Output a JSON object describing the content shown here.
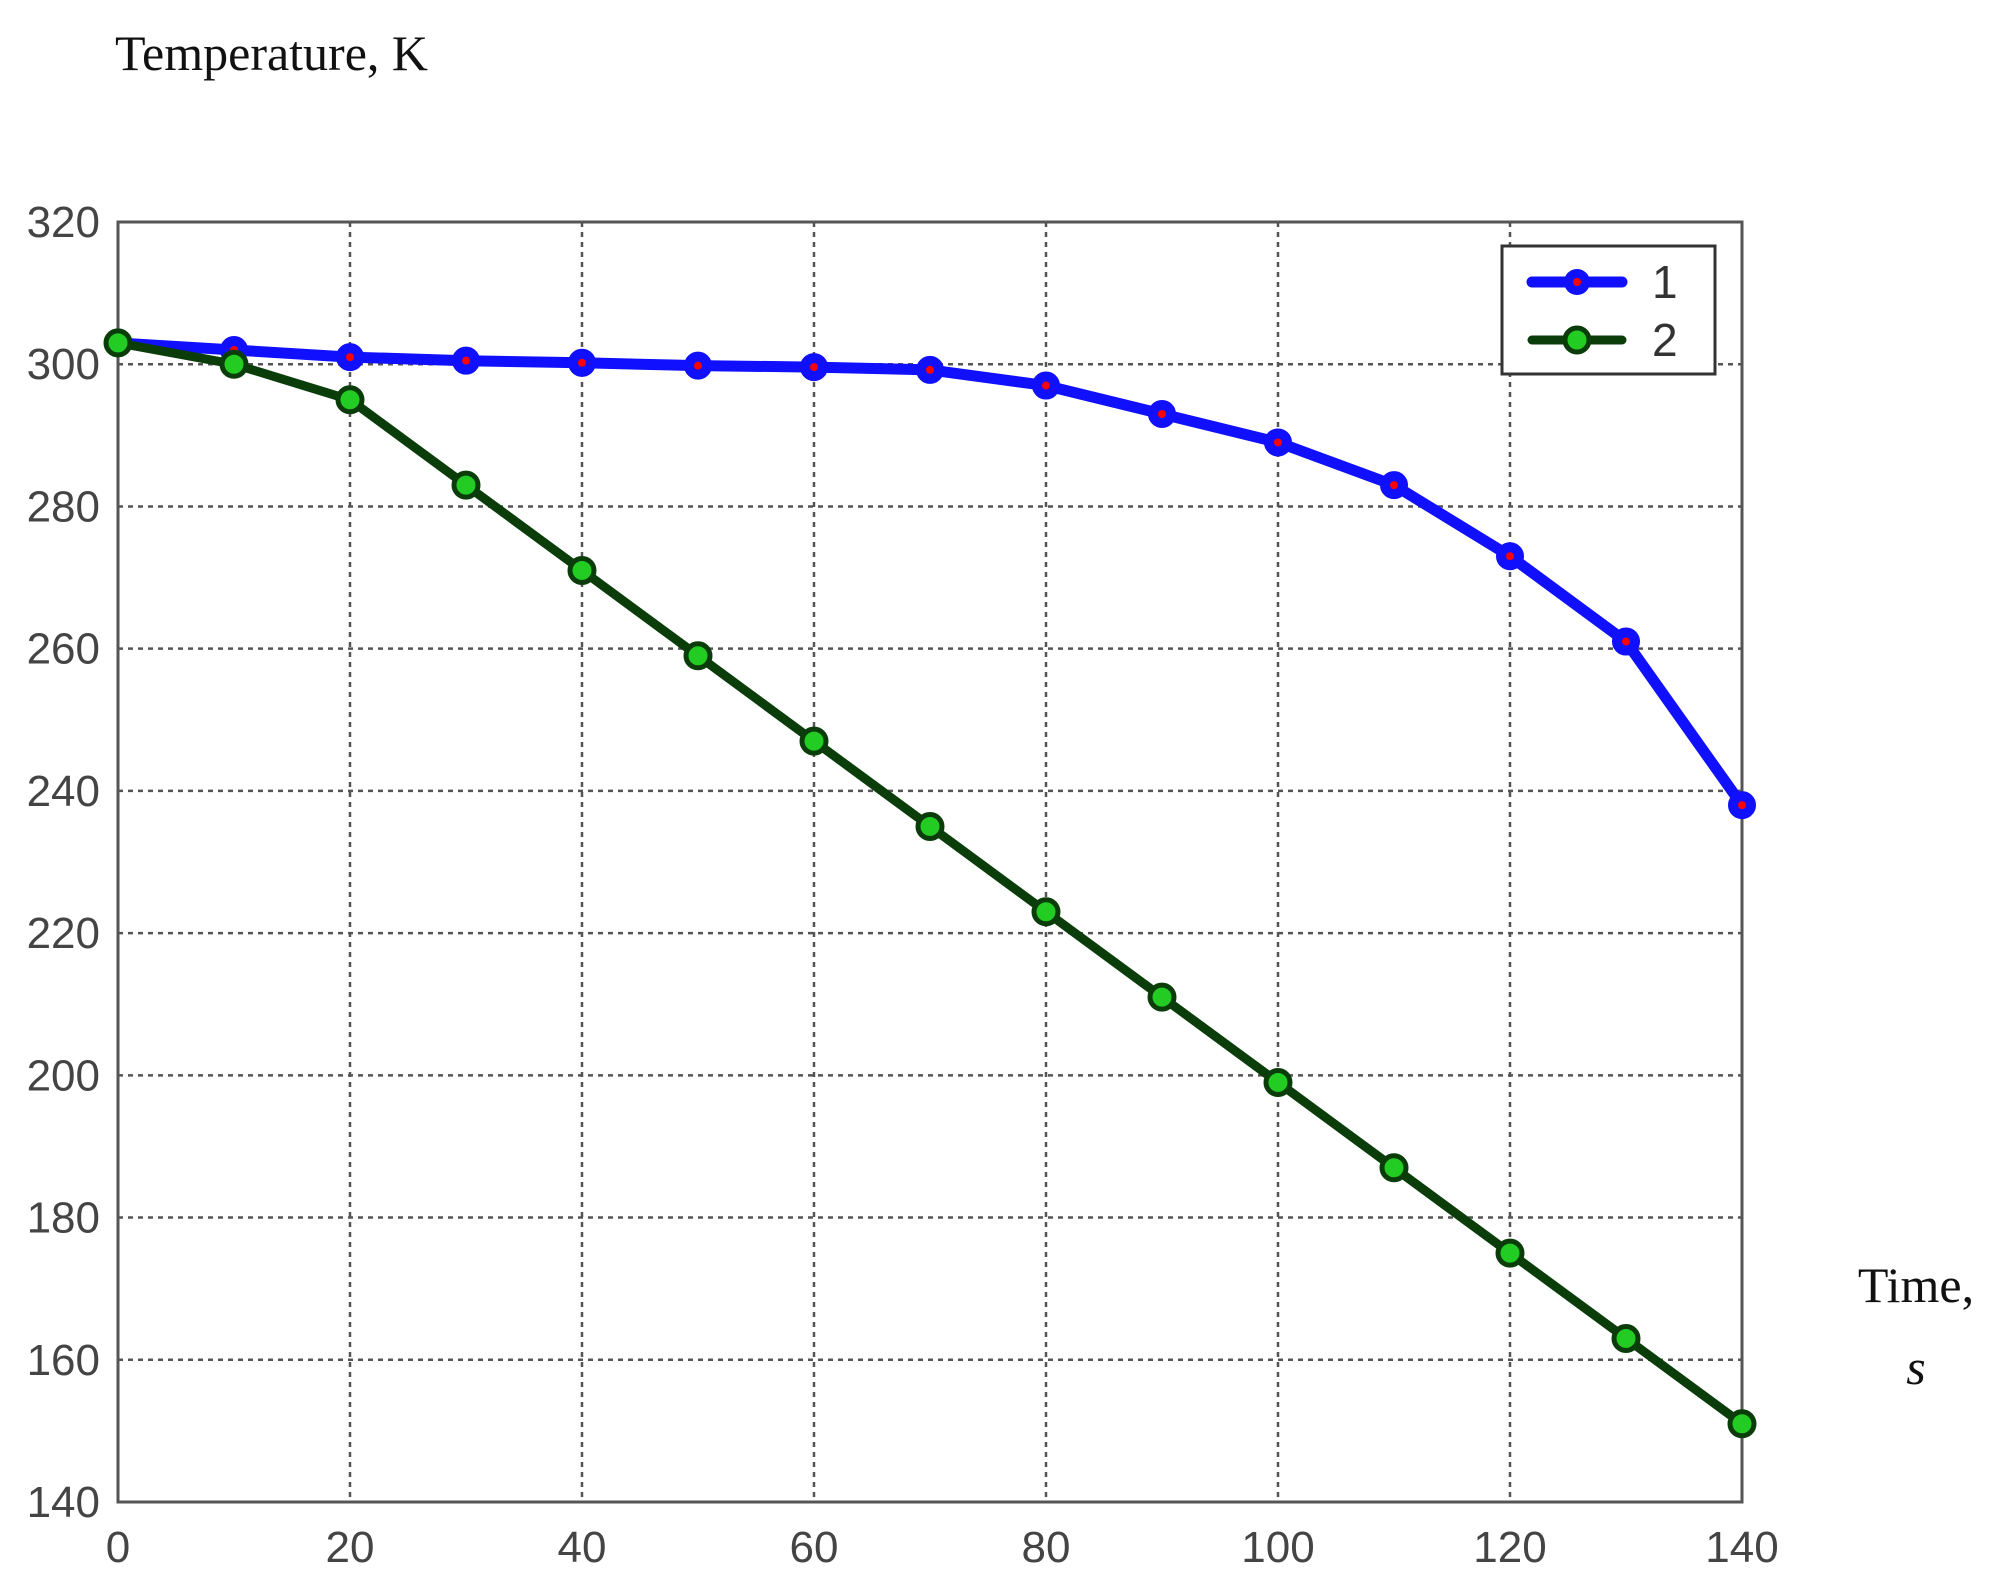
{
  "chart_data": {
    "type": "line",
    "title": "",
    "ylabel": "Temperature, K",
    "xlabel_line1": "Time,",
    "xlabel_line2": "s",
    "xlim": [
      0,
      140
    ],
    "ylim": [
      140,
      320
    ],
    "x_ticks": [
      0,
      20,
      40,
      60,
      80,
      100,
      120,
      140
    ],
    "y_ticks": [
      140,
      160,
      180,
      200,
      220,
      240,
      260,
      280,
      300,
      320
    ],
    "x_tick_labels": [
      "0",
      "20",
      "40",
      "60",
      "80",
      "100",
      "120",
      "140"
    ],
    "y_tick_labels": [
      "140",
      "160",
      "180",
      "200",
      "220",
      "240",
      "260",
      "280",
      "300",
      "320"
    ],
    "grid": true,
    "legend_position": "top-right",
    "x": [
      0,
      10,
      20,
      30,
      40,
      50,
      60,
      70,
      80,
      90,
      100,
      110,
      120,
      130,
      140
    ],
    "series": [
      {
        "name": "1",
        "color": "#1010ff",
        "marker_center_color": "#ff0000",
        "values": [
          303,
          302,
          301,
          300.5,
          300.2,
          299.8,
          299.6,
          299.2,
          297,
          293,
          289,
          283,
          273,
          261,
          238
        ]
      },
      {
        "name": "2",
        "color": "#0b3d0b",
        "marker_color": "#22cc22",
        "values": [
          303,
          300,
          295,
          283,
          271,
          259,
          247,
          235,
          223,
          211,
          199,
          187,
          175,
          163,
          151
        ]
      }
    ]
  }
}
